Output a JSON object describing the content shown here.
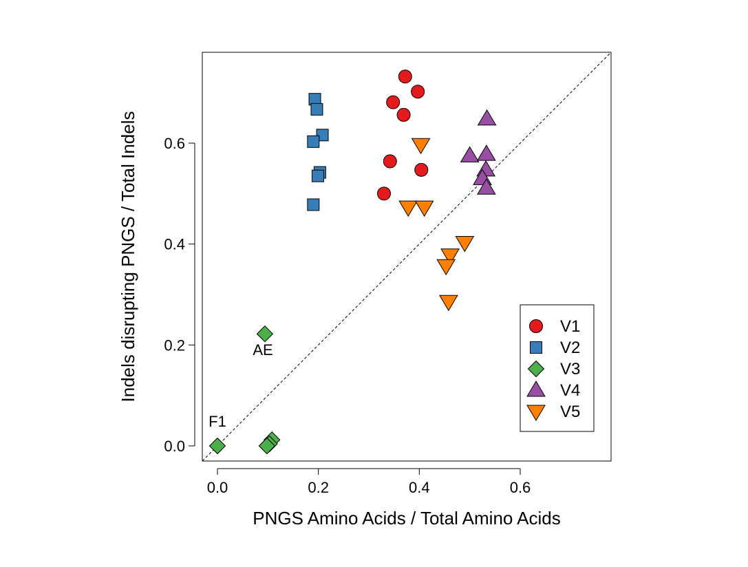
{
  "chart_data": {
    "type": "scatter",
    "title": "",
    "xlabel": "PNGS Amino Acids / Total Amino Acids",
    "ylabel": "Indels disrupting PNGS / Total Indels",
    "xlim": [
      -0.03,
      0.78
    ],
    "ylim": [
      -0.03,
      0.78
    ],
    "xticks": [
      0.0,
      0.2,
      0.4,
      0.6
    ],
    "xtick_labels": [
      "0.0",
      "0.2",
      "0.4",
      "0.6"
    ],
    "yticks": [
      0.0,
      0.2,
      0.4,
      0.6
    ],
    "ytick_labels": [
      "0.0",
      "0.2",
      "0.4",
      "0.6"
    ],
    "grid": false,
    "reference_line": "y = x (dashed)",
    "legend_position": "bottom-right",
    "series": [
      {
        "name": "V1",
        "marker": "circle",
        "color": "#E41A1C",
        "points": [
          [
            0.372,
            0.732
          ],
          [
            0.397,
            0.702
          ],
          [
            0.348,
            0.681
          ],
          [
            0.369,
            0.656
          ],
          [
            0.342,
            0.564
          ],
          [
            0.404,
            0.547
          ],
          [
            0.33,
            0.5
          ]
        ]
      },
      {
        "name": "V2",
        "marker": "square",
        "color": "#377EB8",
        "points": [
          [
            0.193,
            0.687
          ],
          [
            0.197,
            0.667
          ],
          [
            0.208,
            0.616
          ],
          [
            0.19,
            0.603
          ],
          [
            0.203,
            0.542
          ],
          [
            0.199,
            0.535
          ],
          [
            0.19,
            0.478
          ]
        ]
      },
      {
        "name": "V3",
        "marker": "diamond",
        "color": "#4DAF4A",
        "points": [
          [
            0.094,
            0.222
          ],
          [
            0.0,
            0.0
          ],
          [
            0.108,
            0.012
          ],
          [
            0.103,
            0.004
          ],
          [
            0.098,
            0.0
          ]
        ]
      },
      {
        "name": "V4",
        "marker": "triangle-up",
        "color": "#984EA3",
        "points": [
          [
            0.534,
            0.648
          ],
          [
            0.5,
            0.575
          ],
          [
            0.533,
            0.578
          ],
          [
            0.532,
            0.547
          ],
          [
            0.525,
            0.53
          ],
          [
            0.533,
            0.511
          ]
        ]
      },
      {
        "name": "V5",
        "marker": "triangle-down",
        "color": "#FF7F00",
        "points": [
          [
            0.403,
            0.597
          ],
          [
            0.378,
            0.473
          ],
          [
            0.41,
            0.473
          ],
          [
            0.49,
            0.403
          ],
          [
            0.461,
            0.378
          ],
          [
            0.453,
            0.357
          ],
          [
            0.458,
            0.286
          ]
        ]
      }
    ],
    "annotations": [
      {
        "text": "AE",
        "x": 0.09,
        "y": 0.18
      },
      {
        "text": "F1",
        "x": 0.0,
        "y": 0.038
      }
    ]
  }
}
